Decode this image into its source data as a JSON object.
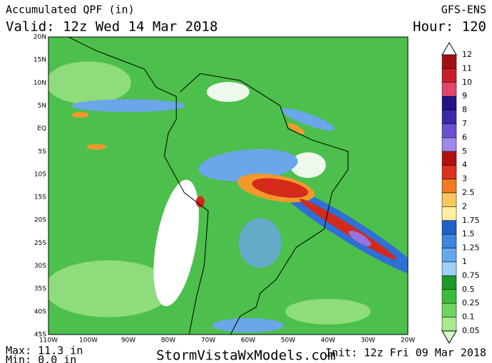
{
  "header": {
    "title": "Accumulated QPF (in)",
    "valid": "Valid: 12z Wed 14 Mar 2018",
    "model": "GFS-ENS",
    "hour": "Hour: 120"
  },
  "map": {
    "lat_labels": [
      "20N",
      "15N",
      "10N",
      "5N",
      "EQ",
      "5S",
      "10S",
      "15S",
      "20S",
      "25S",
      "30S",
      "35S",
      "40S",
      "45S"
    ],
    "lon_labels": [
      "110W",
      "100W",
      "90W",
      "80W",
      "70W",
      "60W",
      "50W",
      "40W",
      "30W",
      "20W"
    ]
  },
  "colorbar": {
    "labels": [
      "12",
      "11",
      "10",
      "9",
      "8",
      "7",
      "6",
      "5",
      "4",
      "3",
      "2.5",
      "2",
      "1.75",
      "1.5",
      "1.25",
      "1",
      "0.75",
      "0.5",
      "0.25",
      "0.1",
      "0.05"
    ]
  },
  "footer": {
    "max": "Max: 11.3 in",
    "min": "Min: 0.0 in",
    "site": "StormVistaWxModels.com",
    "init": "Init: 12z Fri 09 Mar 2018"
  }
}
